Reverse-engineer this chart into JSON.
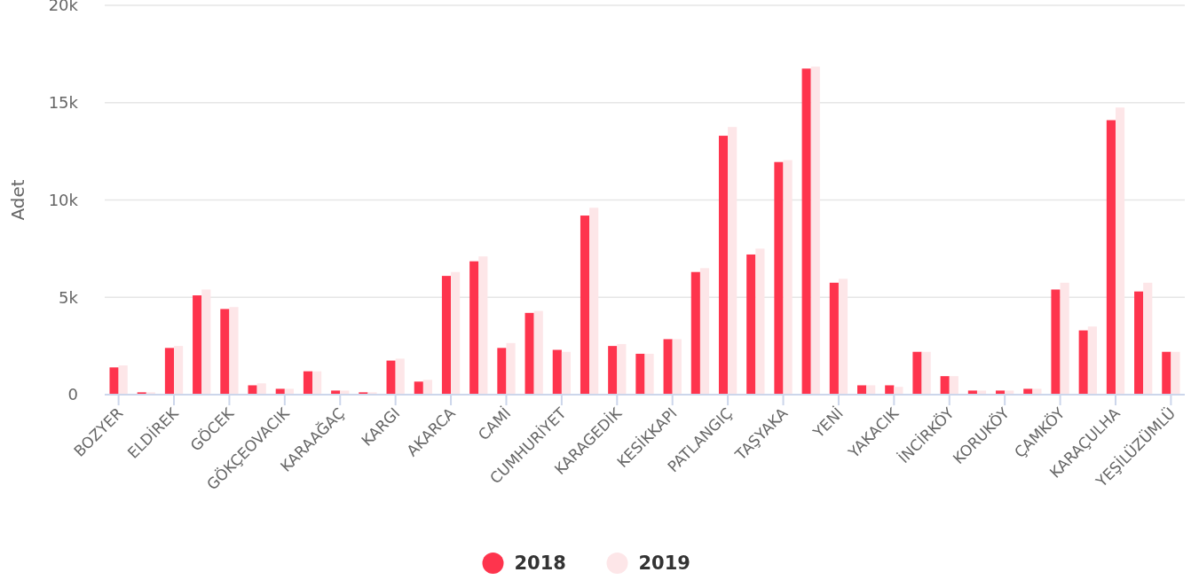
{
  "chart_data": {
    "type": "bar",
    "ylabel": "Adet",
    "categories": [
      "BOZYER",
      null,
      "ELDİREK",
      null,
      "GÖCEK",
      null,
      "GÖKÇEOVACIK",
      null,
      "KARAAĞAÇ",
      null,
      "KARGI",
      null,
      "AKARCA",
      null,
      "CAMİ",
      null,
      "CUMHURİYET",
      null,
      "KARAGEDİK",
      null,
      "KESİKKAPI",
      null,
      "PATLANGIÇ",
      null,
      "TAŞYAKA",
      null,
      "YENİ",
      null,
      "YAKACIK",
      null,
      "İNCİRKÖY",
      null,
      "KORUKÖY",
      null,
      "ÇAMKÖY",
      null,
      "KARAÇULHA",
      null,
      "YEŞİLÜZÜMLÜ"
    ],
    "series": [
      {
        "name": "2018",
        "color": "#fe344d",
        "values": [
          1400,
          120,
          2400,
          5100,
          4400,
          480,
          300,
          1200,
          210,
          120,
          1750,
          670,
          6100,
          6850,
          2400,
          4200,
          2300,
          9200,
          2500,
          2100,
          2850,
          6300,
          13300,
          7200,
          11950,
          16750,
          5750,
          480,
          480,
          2200,
          950,
          210,
          210,
          300,
          5400,
          3300,
          14100,
          5300,
          2200
        ]
      },
      {
        "name": "2019",
        "color": "#fde6e8",
        "values": [
          1500,
          120,
          2500,
          5400,
          4500,
          580,
          300,
          1200,
          210,
          120,
          1850,
          760,
          6300,
          7100,
          2650,
          4300,
          2200,
          9600,
          2600,
          2100,
          2850,
          6500,
          13750,
          7500,
          12050,
          16850,
          5950,
          480,
          400,
          2200,
          950,
          210,
          210,
          300,
          5750,
          3500,
          14750,
          5750,
          2200
        ]
      }
    ],
    "ylim": [
      0,
      20000
    ],
    "yticks": [
      0,
      {
        "value": 5000,
        "label": "5k"
      },
      {
        "value": 10000,
        "label": "10k"
      },
      {
        "value": 15000,
        "label": "15k"
      },
      {
        "value": 20000,
        "label": "20k"
      }
    ],
    "grid": "y",
    "legend": "bottom",
    "marker": "circle"
  }
}
